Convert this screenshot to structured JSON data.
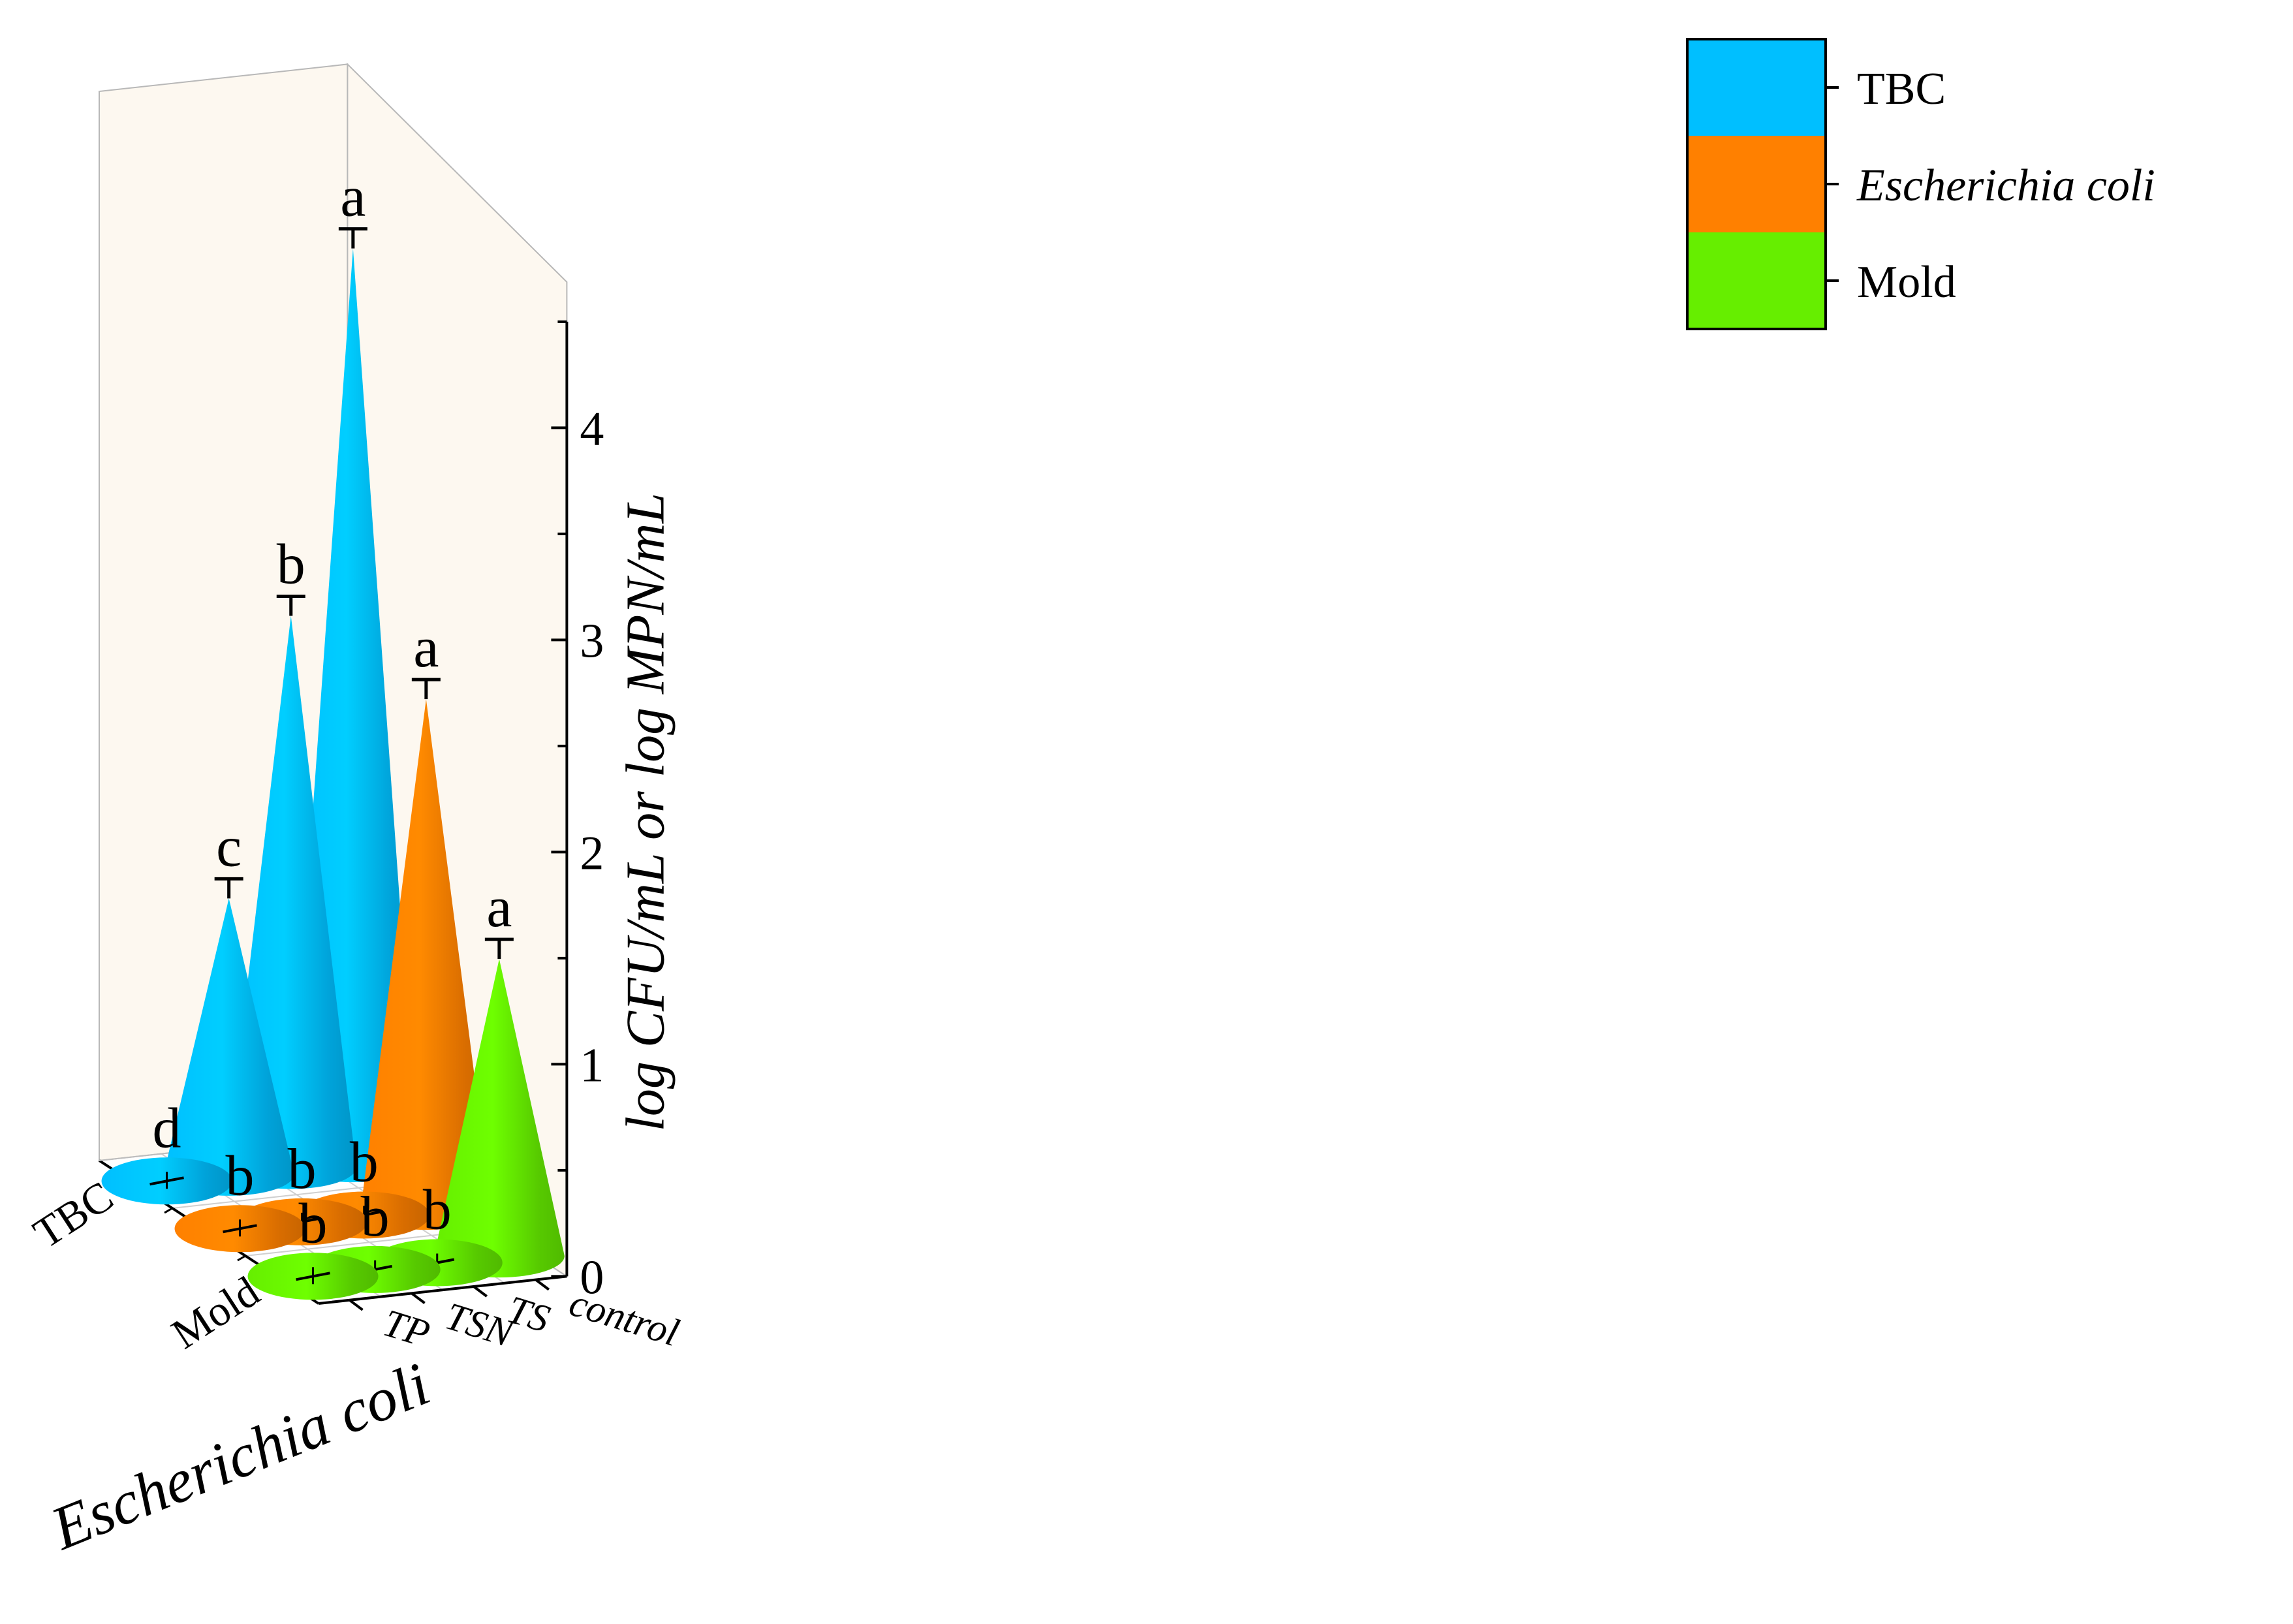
{
  "chart_data": {
    "type": "bar",
    "subtype": "3d-cone",
    "y_axis": {
      "title": "log CFU/mL or log MPN/mL",
      "ticks": [
        "0",
        "1",
        "2",
        "3",
        "4"
      ],
      "range": [
        0,
        4.5
      ]
    },
    "category_axis": {
      "title": "Escherichia coli",
      "labels": [
        "TBC",
        "Escherichia coli",
        "Mold"
      ],
      "shown_labels": [
        "TBC",
        "Mold"
      ]
    },
    "treatment_axis": {
      "labels": [
        "control",
        "TS",
        "TSN",
        "TP"
      ]
    },
    "legend": [
      {
        "name": "TBC",
        "color": "#00bfff"
      },
      {
        "name": "Escherichia coli",
        "color": "#ff8000",
        "italic": true
      },
      {
        "name": "Mold",
        "color": "#66ee00"
      }
    ],
    "series": [
      {
        "name": "TBC",
        "color": "#00bfff",
        "values": {
          "control": 4.3,
          "TS": 2.6,
          "TSN": 1.3,
          "TP": 0.0
        },
        "labels": {
          "control": "a",
          "TS": "b",
          "TSN": "c",
          "TP": "d"
        }
      },
      {
        "name": "Escherichia coli",
        "color": "#ff8000",
        "values": {
          "control": 2.4,
          "TS": 0.0,
          "TSN": 0.0,
          "TP": 0.0
        },
        "labels": {
          "control": "a",
          "TS": "b",
          "TSN": "b",
          "TP": "b"
        }
      },
      {
        "name": "Mold",
        "color": "#66ee00",
        "values": {
          "control": 1.4,
          "TS": 0.0,
          "TSN": 0.0,
          "TP": 0.0
        },
        "labels": {
          "control": "a",
          "TS": "b",
          "TSN": "b",
          "TP": "b"
        }
      }
    ]
  }
}
